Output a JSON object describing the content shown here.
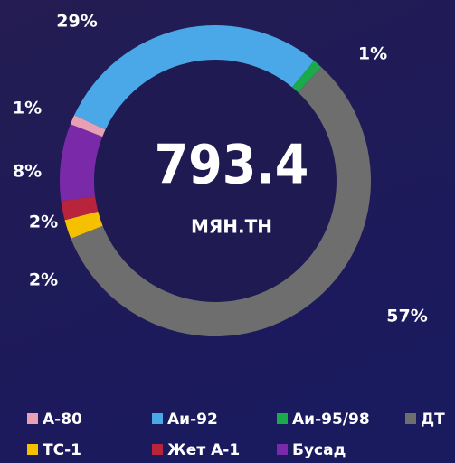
{
  "chart_data": {
    "type": "donut",
    "center_value": "793.4",
    "center_unit": "МЯН.ТН",
    "series": [
      {
        "name": "Аи-92",
        "color": "#4aa8e8",
        "values": [
          29
        ],
        "value_labels": [
          "29%"
        ]
      },
      {
        "name": "Аи-95/98",
        "color": "#1aaa4a",
        "values": [
          1
        ],
        "value_labels": [
          "1%"
        ]
      },
      {
        "name": "ДТ",
        "color": "#6e6e6e",
        "values": [
          57
        ],
        "value_labels": [
          "57%"
        ]
      },
      {
        "name": "ТС-1",
        "color": "#f5c000",
        "values": [
          2
        ],
        "value_labels": [
          "2%"
        ]
      },
      {
        "name": "Жет А-1",
        "color": "#b8243c",
        "values": [
          2
        ],
        "value_labels": [
          "2%"
        ]
      },
      {
        "name": "Бусад",
        "color": "#7a2aa8",
        "values": [
          8
        ],
        "value_labels": [
          "8%"
        ]
      },
      {
        "name": "А-80",
        "color": "#e8a0b4",
        "values": [
          1
        ],
        "value_labels": [
          "1%"
        ]
      }
    ]
  }
}
